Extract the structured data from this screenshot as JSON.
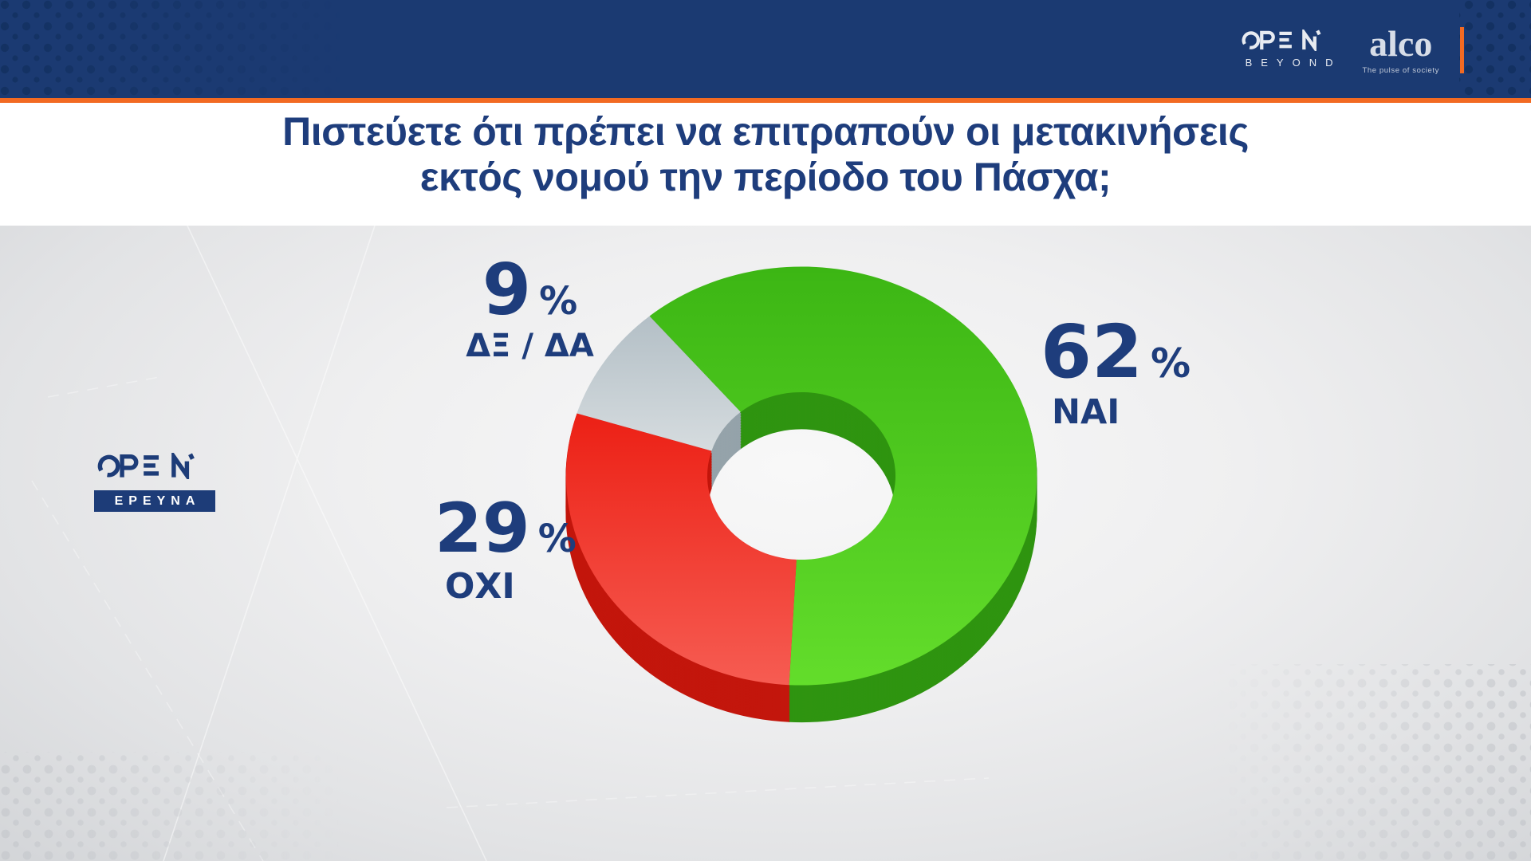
{
  "header": {
    "open_brand": {
      "name": "OPEN",
      "tagline": "BEYOND"
    },
    "alco_brand": {
      "name": "alco",
      "tagline": "The pulse of society"
    }
  },
  "title": {
    "line1": "Πιστεύετε ότι πρέπει να επιτραπούν οι μετακινήσεις",
    "line2": "εκτός νομού την περίοδο του Πάσχα;"
  },
  "watermark": {
    "brand": "OPEN",
    "label": "ΕΡΕΥΝΑ"
  },
  "chart_data": {
    "type": "pie",
    "variant": "3d-donut",
    "title": "Πιστεύετε ότι πρέπει να επιτραπούν οι μετακινήσεις εκτός νομού την περίοδο του Πάσχα;",
    "unit": "%",
    "direction": "clockwise",
    "start_angle_deg": -40.2,
    "legend_position": "callouts-around-chart",
    "segments": [
      {
        "label": "ΝΑΙ",
        "value": 62,
        "color": "#3cb614",
        "color_light": "#63dd2b",
        "color_dark": "#2f9410"
      },
      {
        "label": "ΟΧΙ",
        "value": 29,
        "color": "#ec2015",
        "color_light": "#f65c52",
        "color_dark": "#c3160c"
      },
      {
        "label": "ΔΞ / ΔΑ",
        "value": 9,
        "color": "#b3bfc6",
        "color_light": "#d6dcdf",
        "color_dark": "#95a3aa"
      }
    ]
  },
  "colors": {
    "header_bg": "#1b3a72",
    "accent_orange": "#f26a22",
    "text_navy": "#1e3d7c",
    "chart_bg": "#e9eaec"
  }
}
